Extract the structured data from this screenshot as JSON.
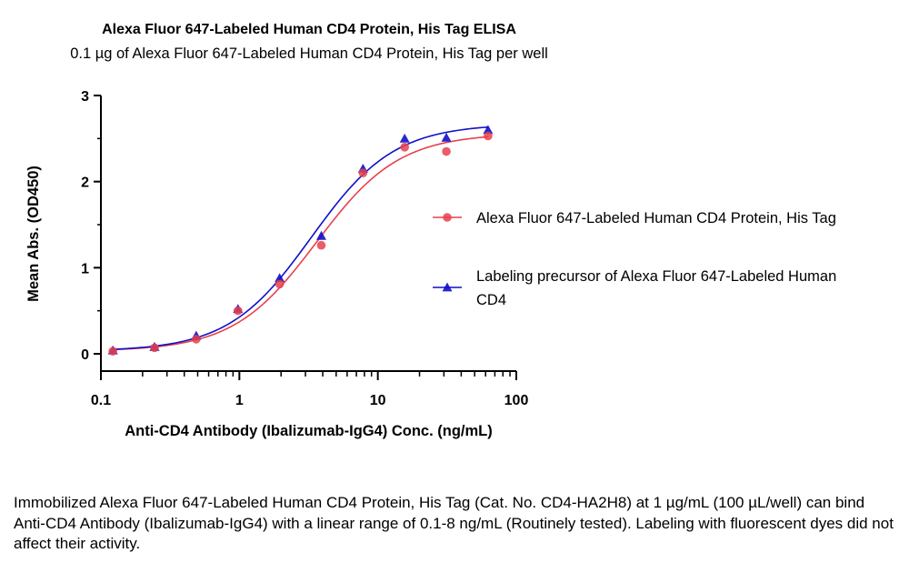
{
  "chart_data": {
    "type": "scatter",
    "title": "Alexa Fluor 647-Labeled Human CD4 Protein, His Tag ELISA",
    "subtitle": "0.1 µg of Alexa Fluor 647-Labeled Human CD4 Protein, His Tag per well",
    "xlabel": "Anti-CD4 Antibody (Ibalizumab-IgG4) Conc. (ng/mL)",
    "ylabel": "Mean Abs. (OD450)",
    "xscale": "log",
    "xlim": [
      0.1,
      100
    ],
    "ylim": [
      0,
      3
    ],
    "xticks": [
      0.1,
      1,
      10,
      100
    ],
    "xtick_labels": [
      "0.1",
      "1",
      "10",
      "100"
    ],
    "yticks": [
      0,
      1,
      2,
      3
    ],
    "ytick_labels": [
      "0",
      "1",
      "2",
      "3"
    ],
    "grid": false,
    "legend_position": "right",
    "series": [
      {
        "name": "Alexa Fluor 647-Labeled Human CD4 Protein, His Tag",
        "color": "#e8414b",
        "marker": "circle",
        "x": [
          0.122,
          0.244,
          0.488,
          0.977,
          1.953,
          3.906,
          7.813,
          15.625,
          31.25,
          62.5
        ],
        "y": [
          0.03,
          0.07,
          0.17,
          0.5,
          0.81,
          1.26,
          2.1,
          2.4,
          2.35,
          2.53
        ],
        "fit": {
          "bottom": 0.03,
          "top": 2.56,
          "ec50": 3.6,
          "hill": 1.45
        }
      },
      {
        "name": "Labeling precursor of Alexa Fluor 647-Labeled Human CD4",
        "color": "#1010c8",
        "marker": "triangle",
        "x": [
          0.122,
          0.244,
          0.488,
          0.977,
          1.953,
          3.906,
          7.813,
          15.625,
          31.25,
          62.5
        ],
        "y": [
          0.04,
          0.08,
          0.21,
          0.52,
          0.88,
          1.37,
          2.15,
          2.5,
          2.51,
          2.6
        ],
        "fit": {
          "bottom": 0.03,
          "top": 2.67,
          "ec50": 3.3,
          "hill": 1.45
        }
      }
    ]
  },
  "caption": "Immobilized Alexa Fluor 647-Labeled Human CD4 Protein, His Tag (Cat. No. CD4-HA2H8) at 1 µg/mL (100 µL/well) can bind Anti-CD4 Antibody (Ibalizumab-IgG4) with a linear range of 0.1-8 ng/mL (Routinely tested). Labeling with fluorescent dyes did not affect their activity."
}
